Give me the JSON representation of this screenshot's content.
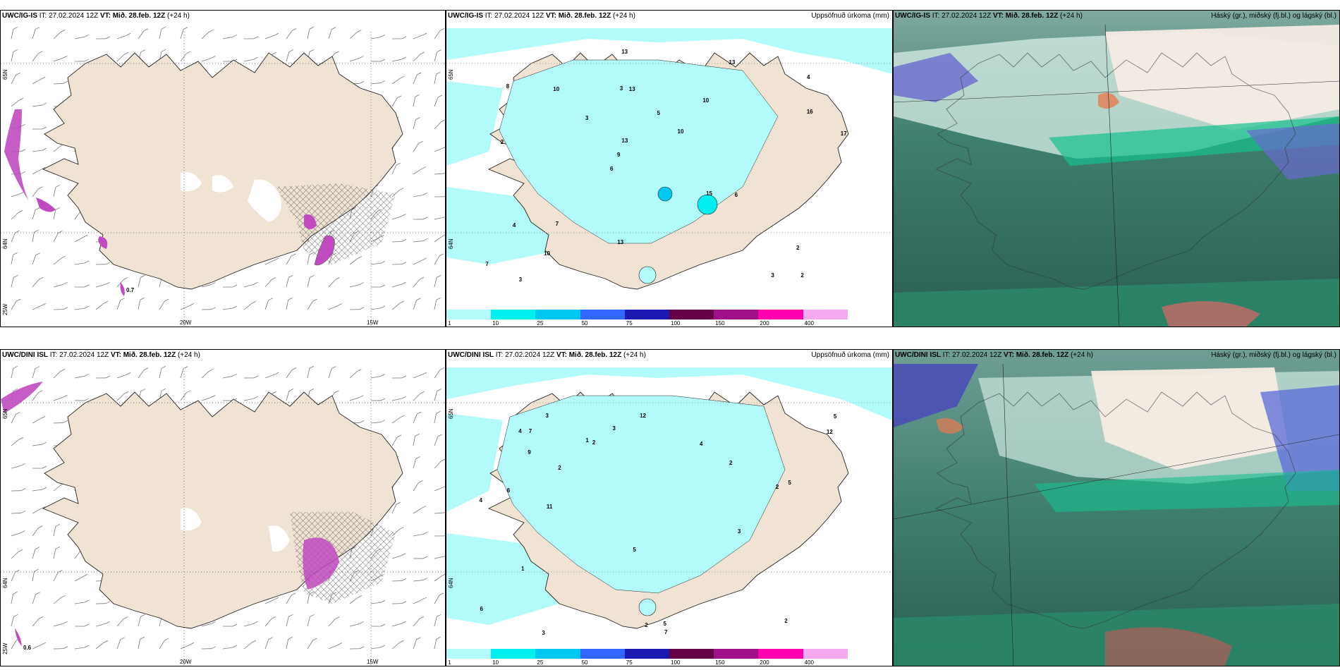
{
  "rows": [
    {
      "model": "UWC/IG-IS",
      "panels": [
        {
          "model_label": "UWC/IG-IS",
          "init_prefix": " IT: 27.02.2024 12Z ",
          "valid_label": "VT: Mið. 28.feb. 12Z",
          "lead": " (+24 h)",
          "right_title": "",
          "grid_labels": {
            "lat_top": "65N",
            "lat_bottom": "64N",
            "lat_corner": "25W",
            "lon1": "20W",
            "lon2": "15W"
          },
          "value_label": "0.7"
        },
        {
          "model_label": "UWC/IG-IS",
          "init_prefix": " IT: 27.02.2024 12Z ",
          "valid_label": "VT: Mið. 28.feb. 12Z",
          "lead": " (+24 h)",
          "right_title": "Uppsöfnuð úrkoma (mm)",
          "grid_labels": {
            "lat_top": "65N",
            "lat_bottom": "64N"
          }
        },
        {
          "model_label": "UWC/IG-IS",
          "init_prefix": " IT: 27.02.2024 12Z ",
          "valid_label": "VT: Mið. 28.feb. 12Z",
          "lead": " (+24 h)",
          "right_title": "Háský (gr.), miðský (fj.bl.) og lágský (bl.)"
        }
      ]
    },
    {
      "model": "UWC/DINI ISL",
      "panels": [
        {
          "model_label": "UWC/DINI ISL",
          "init_prefix": " IT: 27.02.2024 12Z ",
          "valid_label": "VT: Mið. 28.feb. 12Z",
          "lead": " (+24 h)",
          "right_title": "",
          "grid_labels": {
            "lat_top": "65N",
            "lat_bottom": "64N",
            "lat_corner": "25W",
            "lon1": "20W",
            "lon2": "15W"
          },
          "value_label": "0.6"
        },
        {
          "model_label": "UWC/DINI ISL",
          "init_prefix": " IT: 27.02.2024 12Z ",
          "valid_label": "VT: Mið. 28.feb. 12Z",
          "lead": " (+24 h)",
          "right_title": "Uppsöfnuð úrkoma (mm)",
          "grid_labels": {
            "lat_top": "65N",
            "lat_bottom": "64N"
          }
        },
        {
          "model_label": "UWC/DINI ISL",
          "init_prefix": " IT: 27.02.2024 12Z ",
          "valid_label": "VT: Mið. 28.feb. 12Z",
          "lead": " (+24 h)",
          "right_title": "Háský (gr.), miðský (fj.bl.) og lágský (bl.)"
        }
      ]
    }
  ],
  "precip_colorbar": {
    "ticks": [
      "1",
      "10",
      "25",
      "50",
      "75",
      "100",
      "150",
      "200",
      "400"
    ],
    "colors": [
      "#b3fbfb",
      "#00f0f0",
      "#00c8f0",
      "#3366ff",
      "#1a1ab3",
      "#660044",
      "#a0108a",
      "#ff00b0",
      "#f5aaf0",
      "#ffffff"
    ]
  },
  "colors": {
    "land": "#f1e3d3",
    "sea": "#ffffff",
    "precip_light": "#b3fbfb",
    "cloud_low": "#2f6f5c",
    "cloud_mid": "#16c08f",
    "cloud_high": "#e8d7c8"
  },
  "precip_values_top": [
    "2",
    "2",
    "4",
    "6",
    "10",
    "3",
    "3",
    "5",
    "4",
    "3",
    "7",
    "10",
    "13",
    "10",
    "6",
    "8",
    "13",
    "17",
    "15",
    "16",
    "9",
    "13",
    "13",
    "10",
    "13",
    "7",
    "3",
    "2"
  ],
  "precip_values_bottom": [
    "7",
    "2",
    "6",
    "5",
    "3",
    "2",
    "4",
    "3",
    "5",
    "7",
    "11",
    "12",
    "12",
    "6",
    "9",
    "5",
    "3",
    "2",
    "2",
    "2",
    "2",
    "1",
    "3",
    "5",
    "4",
    "4",
    "1"
  ]
}
